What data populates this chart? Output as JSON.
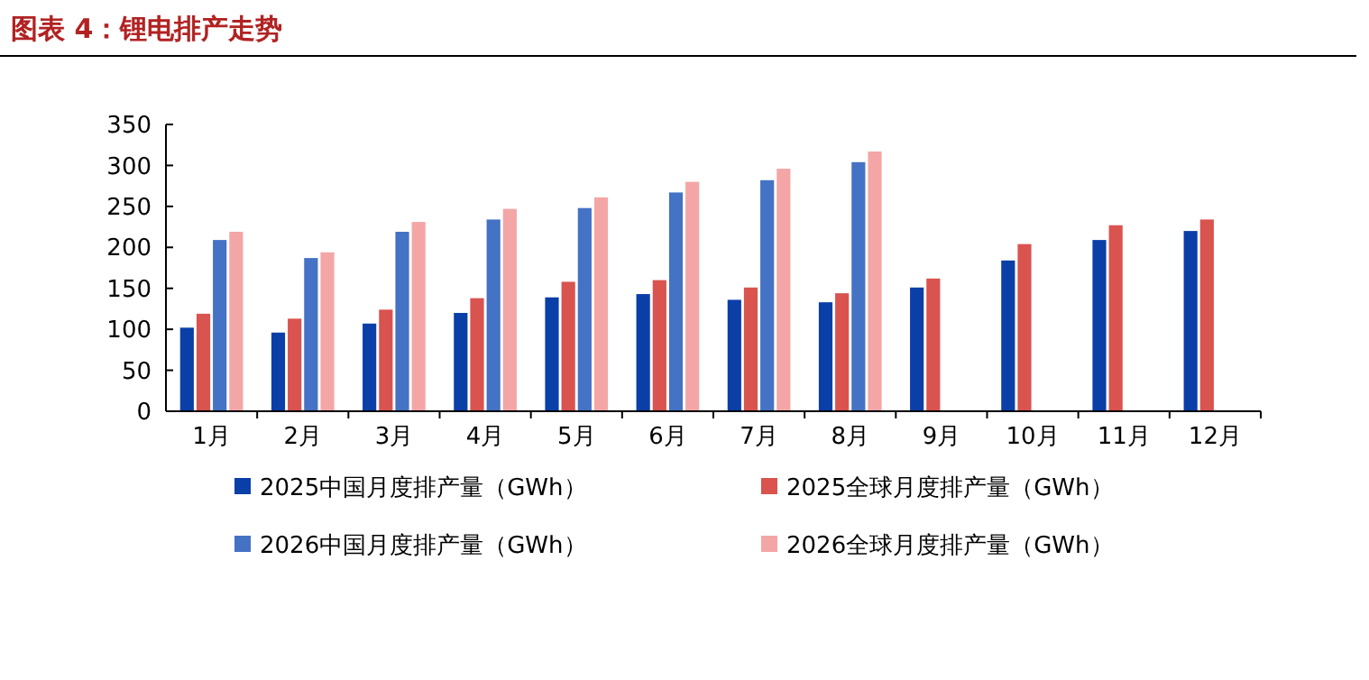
{
  "chart_data": {
    "type": "bar",
    "title": "图表 4：锂电排产走势",
    "categories": [
      "1月",
      "2月",
      "3月",
      "4月",
      "5月",
      "6月",
      "7月",
      "8月",
      "9月",
      "10月",
      "11月",
      "12月"
    ],
    "series": [
      {
        "name": "2025中国月度排产量（GWh）",
        "color": "#0a3fa8",
        "values": [
          102,
          96,
          107,
          120,
          139,
          143,
          136,
          133,
          151,
          184,
          209,
          220
        ]
      },
      {
        "name": "2025全球月度排产量（GWh）",
        "color": "#d9534f",
        "values": [
          119,
          113,
          124,
          138,
          158,
          160,
          151,
          144,
          162,
          204,
          227,
          234
        ]
      },
      {
        "name": "2026中国月度排产量（GWh）",
        "color": "#4472c4",
        "values": [
          209,
          187,
          219,
          234,
          248,
          267,
          282,
          304,
          null,
          null,
          null,
          null
        ]
      },
      {
        "name": "2026全球月度排产量（GWh）",
        "color": "#f4a6a6",
        "values": [
          219,
          194,
          231,
          247,
          261,
          280,
          296,
          317,
          null,
          null,
          null,
          null
        ]
      }
    ],
    "ylim": [
      0,
      350
    ],
    "yticks": [
      0,
      50,
      100,
      150,
      200,
      250,
      300,
      350
    ],
    "grid": false,
    "legend": "bottom"
  }
}
